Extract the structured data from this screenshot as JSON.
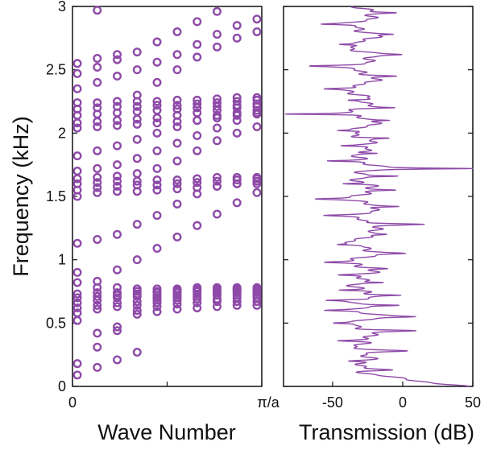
{
  "chart_data": [
    {
      "type": "scatter",
      "title": "",
      "xlabel": "Wave Number",
      "ylabel": "Frequency (kHz)",
      "xlim": [
        0,
        1
      ],
      "ylim": [
        0,
        3
      ],
      "x_tick_labels": [
        {
          "value": 0,
          "label": "0"
        },
        {
          "value": 1,
          "label": "π/a"
        }
      ],
      "x_minor_ticks": [
        0.5
      ],
      "y_tick_labels": [
        {
          "value": 0,
          "label": "0"
        },
        {
          "value": 0.5,
          "label": "0.5"
        },
        {
          "value": 1,
          "label": "1"
        },
        {
          "value": 1.5,
          "label": "1.5"
        },
        {
          "value": 2,
          "label": "2"
        },
        {
          "value": 2.5,
          "label": "2.5"
        },
        {
          "value": 3,
          "label": "3"
        }
      ],
      "marker": "open-circle",
      "color": "#8e4aa8",
      "x": [
        0,
        0.111,
        0.222,
        0.333,
        0.444,
        0.556,
        0.667,
        0.778,
        0.889,
        1
      ],
      "bands_khz": [
        [
          0.09,
          0.15,
          0.21,
          0.27,
          0.59,
          0.61,
          0.62,
          0.63,
          0.64,
          0.64
        ],
        [
          0.18,
          0.31,
          0.44,
          0.57,
          0.63,
          0.65,
          0.66,
          0.67,
          0.67,
          0.67
        ],
        [
          0.52,
          0.42,
          0.47,
          0.6,
          0.66,
          0.68,
          0.69,
          0.69,
          0.7,
          0.7
        ],
        [
          0.58,
          0.61,
          0.63,
          0.64,
          0.68,
          0.7,
          0.71,
          0.72,
          0.72,
          0.72
        ],
        [
          0.62,
          0.64,
          0.66,
          0.67,
          0.7,
          0.72,
          0.73,
          0.74,
          0.74,
          0.74
        ],
        [
          0.66,
          0.68,
          0.7,
          0.71,
          0.72,
          0.74,
          0.75,
          0.75,
          0.75,
          0.75
        ],
        [
          0.7,
          0.71,
          0.72,
          0.73,
          0.74,
          0.75,
          0.76,
          0.76,
          0.76,
          0.76
        ],
        [
          0.73,
          0.74,
          0.74,
          0.75,
          0.75,
          0.76,
          0.77,
          0.77,
          0.77,
          0.77
        ],
        [
          0.82,
          0.78,
          0.78,
          0.77,
          0.77,
          0.77,
          0.78,
          0.78,
          0.78,
          0.78
        ],
        [
          0.9,
          0.83,
          0.92,
          1.0,
          1.09,
          1.18,
          1.27,
          1.36,
          1.45,
          1.53
        ],
        [
          1.13,
          1.16,
          1.2,
          1.28,
          1.35,
          1.44,
          1.52,
          1.58,
          1.6,
          1.6
        ],
        [
          1.5,
          1.53,
          1.54,
          1.54,
          1.55,
          1.56,
          1.57,
          1.58,
          1.6,
          1.62
        ],
        [
          1.55,
          1.57,
          1.58,
          1.59,
          1.59,
          1.6,
          1.61,
          1.62,
          1.63,
          1.64
        ],
        [
          1.6,
          1.61,
          1.62,
          1.62,
          1.63,
          1.63,
          1.64,
          1.65,
          1.65,
          1.65
        ],
        [
          1.64,
          1.65,
          1.66,
          1.68,
          1.72,
          1.78,
          1.86,
          1.94,
          2.0,
          2.05
        ],
        [
          1.7,
          1.72,
          1.75,
          1.8,
          1.86,
          1.92,
          1.98,
          2.04,
          2.1,
          2.15
        ],
        [
          1.82,
          1.86,
          1.9,
          1.95,
          2.0,
          2.05,
          2.1,
          2.14,
          2.16,
          2.18
        ],
        [
          2.04,
          2.05,
          2.06,
          2.07,
          2.08,
          2.09,
          2.1,
          2.12,
          2.14,
          2.16
        ],
        [
          2.08,
          2.09,
          2.1,
          2.11,
          2.12,
          2.14,
          2.16,
          2.18,
          2.2,
          2.21
        ],
        [
          2.14,
          2.15,
          2.16,
          2.17,
          2.18,
          2.19,
          2.2,
          2.21,
          2.22,
          2.23
        ],
        [
          2.19,
          2.2,
          2.21,
          2.21,
          2.22,
          2.22,
          2.23,
          2.24,
          2.25,
          2.26
        ],
        [
          2.24,
          2.24,
          2.25,
          2.25,
          2.25,
          2.26,
          2.26,
          2.27,
          2.28,
          2.28
        ],
        [
          2.35,
          2.4,
          2.45,
          2.5,
          2.56,
          2.62,
          2.7,
          2.78,
          2.85,
          2.9
        ],
        [
          2.47,
          2.52,
          2.58,
          2.64,
          2.72,
          2.8,
          2.88,
          2.96,
          3.02,
          3.05
        ],
        [
          2.55,
          2.59,
          2.62,
          2.3,
          2.4,
          2.5,
          2.6,
          2.68,
          2.75,
          2.8
        ]
      ],
      "extra_points": [
        {
          "x": 0.111,
          "y": 2.97
        }
      ]
    },
    {
      "type": "line",
      "title": "",
      "xlabel": "Transmission (dB)",
      "ylabel": "",
      "xlim": [
        -85,
        50
      ],
      "ylim": [
        0,
        3
      ],
      "x_tick_labels": [
        {
          "value": -50,
          "label": "-50"
        },
        {
          "value": 0,
          "label": "0"
        },
        {
          "value": 50,
          "label": "50"
        }
      ],
      "color": "#8e4aa8",
      "series": [
        {
          "background_db": -28,
          "resonances": [
            {
              "f": 0.13,
              "a": 22,
              "w": 0.008,
              "s": 1
            },
            {
              "f": 0.2,
              "a": 18,
              "w": 0.006,
              "s": -1
            },
            {
              "f": 0.28,
              "a": 30,
              "w": 0.008,
              "s": 1
            },
            {
              "f": 0.36,
              "a": 22,
              "w": 0.006,
              "s": -1
            },
            {
              "f": 0.44,
              "a": 40,
              "w": 0.007,
              "s": 1
            },
            {
              "f": 0.5,
              "a": 25,
              "w": 0.006,
              "s": -1
            },
            {
              "f": 0.55,
              "a": 30,
              "w": 0.006,
              "s": 1
            },
            {
              "f": 0.6,
              "a": 25,
              "w": 0.005,
              "s": -1
            },
            {
              "f": 0.64,
              "a": 35,
              "w": 0.005,
              "s": 1
            },
            {
              "f": 0.68,
              "a": 30,
              "w": 0.005,
              "s": -1
            },
            {
              "f": 0.72,
              "a": 22,
              "w": 0.004,
              "s": 1
            },
            {
              "f": 0.76,
              "a": 20,
              "w": 0.004,
              "s": -1
            },
            {
              "f": 0.82,
              "a": 20,
              "w": 0.004,
              "s": 1
            },
            {
              "f": 0.88,
              "a": 22,
              "w": 0.006,
              "s": -1
            },
            {
              "f": 0.93,
              "a": 18,
              "w": 0.006,
              "s": 1
            },
            {
              "f": 0.98,
              "a": 22,
              "w": 0.006,
              "s": -1
            },
            {
              "f": 1.05,
              "a": 22,
              "w": 0.006,
              "s": 1
            },
            {
              "f": 1.12,
              "a": 20,
              "w": 0.005,
              "s": -1
            },
            {
              "f": 1.2,
              "a": 18,
              "w": 0.006,
              "s": 1
            },
            {
              "f": 1.28,
              "a": 48,
              "w": 0.007,
              "s": 1
            },
            {
              "f": 1.35,
              "a": 20,
              "w": 0.005,
              "s": -1
            },
            {
              "f": 1.42,
              "a": 25,
              "w": 0.005,
              "s": 1
            },
            {
              "f": 1.48,
              "a": 25,
              "w": 0.005,
              "s": -1
            },
            {
              "f": 1.55,
              "a": 20,
              "w": 0.004,
              "s": 1
            },
            {
              "f": 1.6,
              "a": 18,
              "w": 0.004,
              "s": -1
            },
            {
              "f": 1.66,
              "a": 30,
              "w": 0.004,
              "s": 1
            },
            {
              "f": 1.72,
              "a": 78,
              "w": 0.004,
              "s": 1
            },
            {
              "f": 1.78,
              "a": 25,
              "w": 0.004,
              "s": -1
            },
            {
              "f": 1.84,
              "a": 20,
              "w": 0.004,
              "s": 1
            },
            {
              "f": 1.9,
              "a": 18,
              "w": 0.004,
              "s": -1
            },
            {
              "f": 1.96,
              "a": 22,
              "w": 0.004,
              "s": 1
            },
            {
              "f": 2.02,
              "a": 18,
              "w": 0.004,
              "s": -1
            },
            {
              "f": 2.1,
              "a": 18,
              "w": 0.004,
              "s": 1
            },
            {
              "f": 2.15,
              "a": 55,
              "w": 0.004,
              "s": -1
            },
            {
              "f": 2.2,
              "a": 20,
              "w": 0.004,
              "s": 1
            },
            {
              "f": 2.26,
              "a": 18,
              "w": 0.004,
              "s": -1
            },
            {
              "f": 2.35,
              "a": 28,
              "w": 0.006,
              "s": -1
            },
            {
              "f": 2.45,
              "a": 22,
              "w": 0.006,
              "s": 1
            },
            {
              "f": 2.53,
              "a": 30,
              "w": 0.006,
              "s": -1
            },
            {
              "f": 2.62,
              "a": 25,
              "w": 0.006,
              "s": 1
            },
            {
              "f": 2.7,
              "a": 20,
              "w": 0.005,
              "s": -1
            },
            {
              "f": 2.78,
              "a": 18,
              "w": 0.005,
              "s": 1
            },
            {
              "f": 2.86,
              "a": 22,
              "w": 0.005,
              "s": -1
            },
            {
              "f": 2.95,
              "a": 20,
              "w": 0.005,
              "s": 1
            }
          ]
        }
      ]
    }
  ]
}
